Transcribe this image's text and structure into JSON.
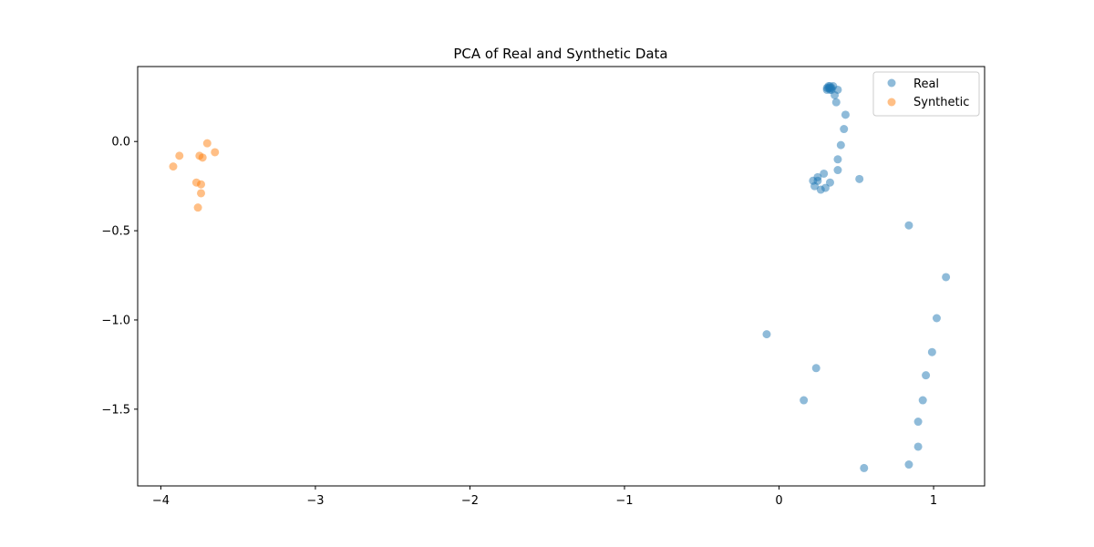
{
  "chart_data": {
    "type": "scatter",
    "title": "PCA of Real and Synthetic Data",
    "xlabel": "",
    "ylabel": "",
    "xlim": [
      -4.15,
      1.33
    ],
    "ylim": [
      -1.93,
      0.42
    ],
    "xticks": [
      -4,
      -3,
      -2,
      -1,
      0,
      1
    ],
    "xtick_labels": [
      "−4",
      "−3",
      "−2",
      "−1",
      "0",
      "1"
    ],
    "yticks": [
      0.0,
      -0.5,
      -1.0,
      -1.5
    ],
    "ytick_labels": [
      "0.0",
      "−0.5",
      "−1.0",
      "−1.5"
    ],
    "grid": false,
    "legend_position": "top-right",
    "series": [
      {
        "name": "Real",
        "color": "#1f77b4",
        "points": [
          [
            0.31,
            0.3
          ],
          [
            0.32,
            0.3
          ],
          [
            0.33,
            0.29
          ],
          [
            0.34,
            0.3
          ],
          [
            0.33,
            0.3
          ],
          [
            0.35,
            0.31
          ],
          [
            0.32,
            0.31
          ],
          [
            0.31,
            0.29
          ],
          [
            0.34,
            0.29
          ],
          [
            0.33,
            0.31
          ],
          [
            0.36,
            0.26
          ],
          [
            0.38,
            0.29
          ],
          [
            0.37,
            0.22
          ],
          [
            0.43,
            0.15
          ],
          [
            0.42,
            0.07
          ],
          [
            0.4,
            -0.02
          ],
          [
            0.38,
            -0.1
          ],
          [
            0.38,
            -0.16
          ],
          [
            0.52,
            -0.21
          ],
          [
            0.29,
            -0.18
          ],
          [
            0.25,
            -0.2
          ],
          [
            0.25,
            -0.22
          ],
          [
            0.22,
            -0.22
          ],
          [
            0.23,
            -0.25
          ],
          [
            0.33,
            -0.23
          ],
          [
            0.27,
            -0.27
          ],
          [
            0.3,
            -0.26
          ],
          [
            0.84,
            -0.47
          ],
          [
            1.08,
            -0.76
          ],
          [
            1.02,
            -0.99
          ],
          [
            -0.08,
            -1.08
          ],
          [
            0.99,
            -1.18
          ],
          [
            0.24,
            -1.27
          ],
          [
            0.95,
            -1.31
          ],
          [
            0.16,
            -1.45
          ],
          [
            0.93,
            -1.45
          ],
          [
            0.9,
            -1.57
          ],
          [
            0.9,
            -1.71
          ],
          [
            0.84,
            -1.81
          ],
          [
            0.55,
            -1.83
          ]
        ]
      },
      {
        "name": "Synthetic",
        "color": "#ff7f0e",
        "points": [
          [
            -3.7,
            -0.01
          ],
          [
            -3.65,
            -0.06
          ],
          [
            -3.88,
            -0.08
          ],
          [
            -3.75,
            -0.08
          ],
          [
            -3.73,
            -0.09
          ],
          [
            -3.92,
            -0.14
          ],
          [
            -3.77,
            -0.23
          ],
          [
            -3.74,
            -0.24
          ],
          [
            -3.74,
            -0.29
          ],
          [
            -3.76,
            -0.37
          ]
        ]
      }
    ]
  }
}
